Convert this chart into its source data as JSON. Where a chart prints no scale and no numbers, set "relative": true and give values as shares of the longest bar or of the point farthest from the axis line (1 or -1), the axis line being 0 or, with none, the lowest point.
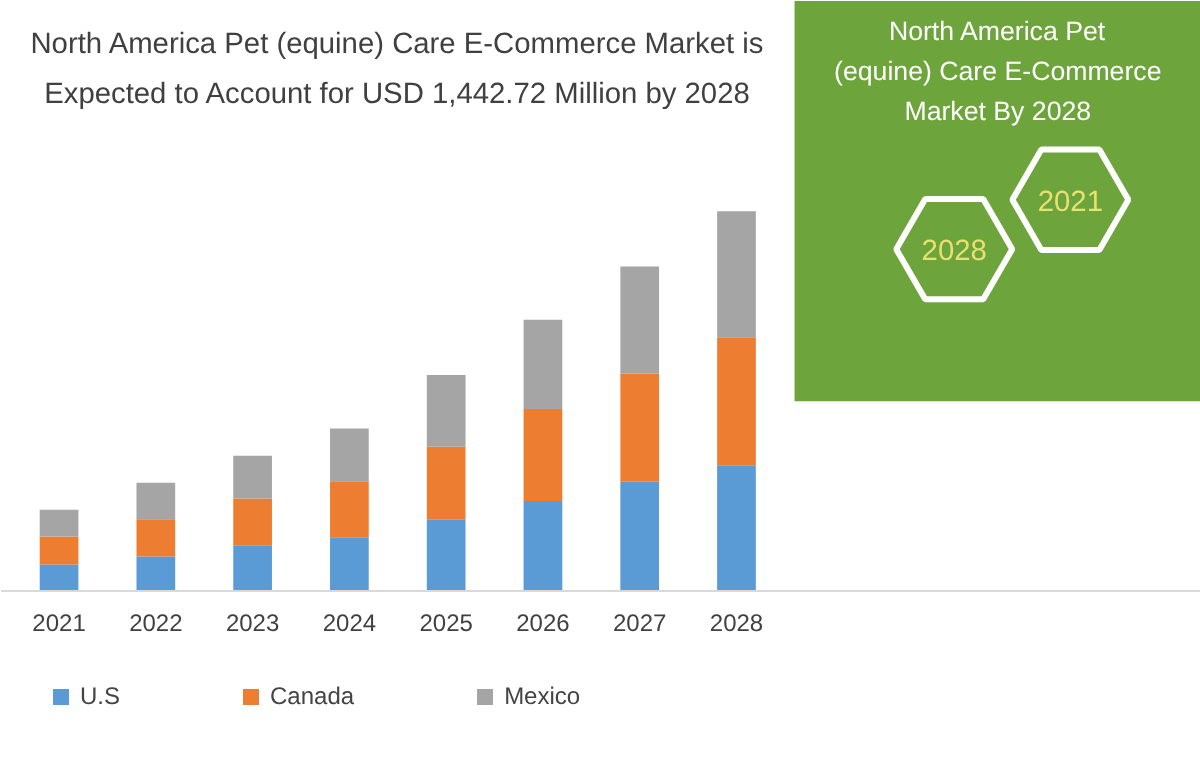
{
  "chart_data": {
    "type": "bar",
    "stacked": true,
    "relative": true,
    "title": "North America Pet (equine) Care E-Commerce Market is Expected to Account for USD 1,442.72 Million by 2028",
    "categories": [
      "2021",
      "2022",
      "2023",
      "2024",
      "2025",
      "2026",
      "2027",
      "2028"
    ],
    "series": [
      {
        "name": "U.S",
        "color": "#5b9bd5",
        "values": [
          0.07,
          0.091,
          0.121,
          0.142,
          0.189,
          0.237,
          0.288,
          0.331
        ]
      },
      {
        "name": "Canada",
        "color": "#ed7d31",
        "values": [
          0.074,
          0.098,
          0.123,
          0.147,
          0.191,
          0.242,
          0.284,
          0.337
        ]
      },
      {
        "name": "Mexico",
        "color": "#a5a5a5",
        "values": [
          0.07,
          0.096,
          0.112,
          0.139,
          0.189,
          0.235,
          0.282,
          0.332
        ]
      }
    ],
    "legend": "bottom",
    "annotations": [
      "North America Pet (equine) Care E-Commerce Market By 2028",
      "2021",
      "2028"
    ]
  }
}
